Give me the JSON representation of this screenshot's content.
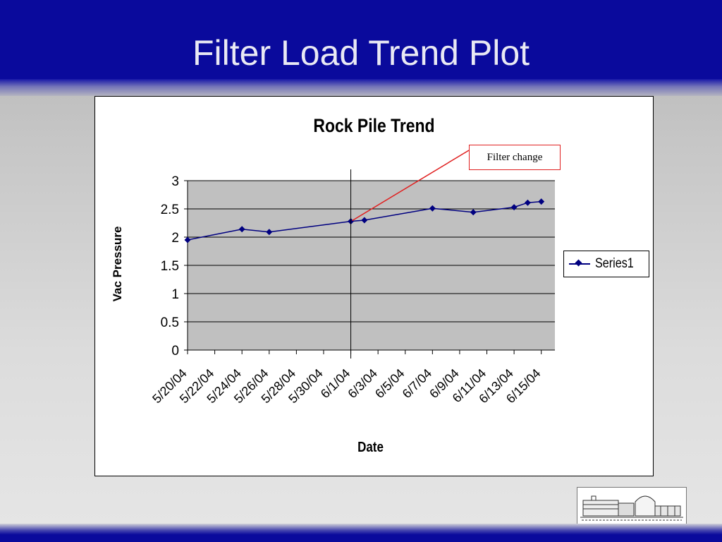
{
  "slide": {
    "title": "Filter Load Trend Plot"
  },
  "colors": {
    "header_band": "#0a0a9c",
    "plot_background": "#c0c0c0",
    "series_line": "#000080",
    "callout_border": "#e02020"
  },
  "annotation": {
    "text": "Filter change",
    "points_to_date": "6/1/04"
  },
  "chart_data": {
    "type": "line",
    "title": "Rock Pile Trend",
    "xlabel": "Date",
    "ylabel": "Vac Pressure",
    "ylim": [
      0,
      3
    ],
    "yticks": [
      "0",
      "0.5",
      "1",
      "1.5",
      "2",
      "2.5",
      "3"
    ],
    "x_tick_labels": [
      "5/20/04",
      "5/22/04",
      "5/24/04",
      "5/26/04",
      "5/28/04",
      "5/30/04",
      "6/1/04",
      "6/3/04",
      "6/5/04",
      "6/7/04",
      "6/9/04",
      "6/11/04",
      "6/13/04",
      "6/15/04"
    ],
    "x_range": [
      "5/20/04",
      "6/16/04"
    ],
    "grid": "horizontal major",
    "legend_position": "right",
    "vertical_marker_at": "6/1/04",
    "series": [
      {
        "name": "Series1",
        "points": [
          {
            "x": "5/20/04",
            "y": 1.95
          },
          {
            "x": "5/24/04",
            "y": 2.14
          },
          {
            "x": "5/26/04",
            "y": 2.09
          },
          {
            "x": "6/1/04",
            "y": 2.28
          },
          {
            "x": "6/2/04",
            "y": 2.3
          },
          {
            "x": "6/7/04",
            "y": 2.51
          },
          {
            "x": "6/10/04",
            "y": 2.44
          },
          {
            "x": "6/13/04",
            "y": 2.53
          },
          {
            "x": "6/14/04",
            "y": 2.61
          },
          {
            "x": "6/15/04",
            "y": 2.63
          }
        ]
      }
    ]
  }
}
